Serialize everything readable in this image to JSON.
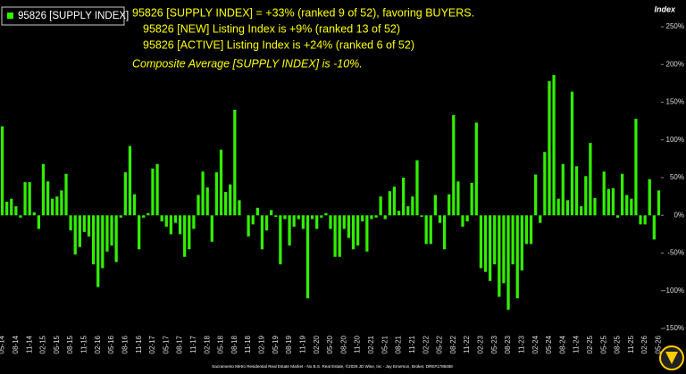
{
  "chart_data": {
    "type": "bar",
    "legend": "95826 [SUPPLY INDEX]",
    "y_axis_label": "Index",
    "annotations": [
      "95826 [SUPPLY INDEX] = +33% (ranked 9 of 52), favoring BUYERS.",
      "95826 [NEW] Listing Index is +9% (ranked 13 of 52)",
      "95826 [ACTIVE] Listing Index is +24% (ranked 6 of 52)",
      "Composite Average [SUPPLY INDEX] is -10%."
    ],
    "footer": "Sacramento Metro Residential Real Estate Market - No B.S. Real Estate, ©2026 JD Wise, Inc - Jay Emerson, Broker, DRE#1788488",
    "color": "#33ee00",
    "ylim": [
      -150,
      250
    ],
    "yticks": [
      {
        "value": -150,
        "label": "-150%"
      },
      {
        "value": -100,
        "label": "-100%"
      },
      {
        "value": -50,
        "label": "-50%"
      },
      {
        "value": 0,
        "label": "0%"
      },
      {
        "value": 50,
        "label": "50%"
      },
      {
        "value": 100,
        "label": "100%"
      },
      {
        "value": 150,
        "label": "150%"
      },
      {
        "value": 200,
        "label": "200%"
      },
      {
        "value": 250,
        "label": "250%"
      }
    ],
    "categories": [
      "05-14",
      null,
      null,
      "08-14",
      null,
      null,
      "11-14",
      null,
      null,
      "02-15",
      null,
      null,
      "05-15",
      null,
      null,
      "08-15",
      null,
      null,
      "11-15",
      null,
      null,
      "02-16",
      null,
      null,
      "05-16",
      null,
      null,
      "08-16",
      null,
      null,
      "11-16",
      null,
      null,
      "02-17",
      null,
      null,
      "05-17",
      null,
      null,
      "08-17",
      null,
      null,
      "11-17",
      null,
      null,
      "02-18",
      null,
      null,
      "05-18",
      null,
      null,
      "08-18",
      null,
      null,
      "11-18",
      null,
      null,
      "02-19",
      null,
      null,
      "05-19",
      null,
      null,
      "08-19",
      null,
      null,
      "11-19",
      null,
      null,
      "02-20",
      null,
      null,
      "05-20",
      null,
      null,
      "08-20",
      null,
      null,
      "11-20",
      null,
      null,
      "02-21",
      null,
      null,
      "05-21",
      null,
      null,
      "08-21",
      null,
      null,
      "11-21",
      null,
      null,
      "02-22",
      null,
      null,
      "05-22",
      null,
      null,
      "08-22",
      null,
      null,
      "11-22",
      null,
      null,
      "02-23",
      null,
      null,
      "05-23",
      null,
      null,
      "08-23",
      null,
      null,
      "11-23",
      null,
      null,
      "02-24",
      null,
      null,
      "05-24",
      null,
      null,
      "08-24",
      null,
      null,
      "11-24",
      null,
      null,
      "02-25",
      null,
      null,
      "05-25",
      null,
      null,
      "08-25",
      null,
      null,
      "11-25",
      null,
      null,
      "02-26",
      null,
      null,
      "05-26"
    ],
    "values": [
      118,
      18,
      22,
      12,
      -3,
      44,
      44,
      4,
      -18,
      68,
      45,
      22,
      25,
      33,
      55,
      -20,
      -52,
      -42,
      -22,
      -28,
      -65,
      -95,
      -70,
      -48,
      -40,
      -62,
      -3,
      57,
      92,
      28,
      -45,
      -3,
      3,
      62,
      68,
      -8,
      -15,
      -25,
      -10,
      -25,
      -55,
      -45,
      -18,
      27,
      58,
      37,
      -35,
      57,
      87,
      31,
      41,
      140,
      20,
      0,
      -28,
      -12,
      10,
      -45,
      -20,
      7,
      -2,
      -65,
      -5,
      -40,
      -15,
      -5,
      -18,
      -110,
      -5,
      -18,
      -3,
      3,
      -18,
      -55,
      -55,
      -18,
      -30,
      -45,
      -40,
      -8,
      -48,
      -5,
      -3,
      25,
      -5,
      32,
      38,
      6,
      50,
      12,
      25,
      73,
      -2,
      -38,
      -38,
      27,
      -10,
      -45,
      28,
      133,
      45,
      -15,
      -8,
      43,
      123,
      -70,
      -75,
      -87,
      -65,
      -108,
      -90,
      -125,
      -65,
      -110,
      -73,
      -38,
      -38,
      54,
      -10,
      84,
      178,
      186,
      22,
      68,
      20,
      164,
      65,
      12,
      52,
      96,
      23,
      0,
      58,
      35,
      36,
      -3,
      55,
      27,
      22,
      128,
      -12,
      -12,
      48,
      -32,
      33
    ]
  }
}
